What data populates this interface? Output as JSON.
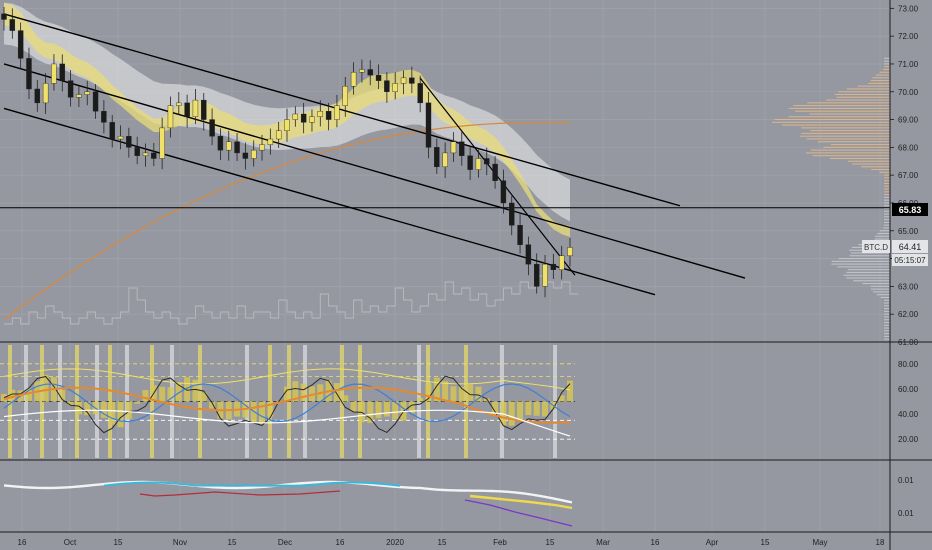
{
  "colors": {
    "background": "#9598a1",
    "grid": "#a2a5ad",
    "bull": "#f0e268",
    "bear": "#1b1b1b",
    "ribbon_yellow": "#e8dc78",
    "ribbon_white": "#eeeeee",
    "ma_orange": "#d8883a",
    "volume_profile": "#e3b98a",
    "volume_line": "#b8bac0",
    "channel": "#000000",
    "label_bg_dark": "#000000",
    "label_bg_light": "#e2e4e8",
    "osc_blue": "#3d7fd6",
    "osc_orange": "#e6882c",
    "osc_white": "#ffffff",
    "osc_black": "#2a2a2a",
    "osc_yellow": "#efe06a",
    "osc_hist": "#d8c850",
    "macd_white": "#f3f3f3",
    "macd_cyan": "#3bb7d8",
    "macd_red": "#b32d3a",
    "macd_yellow": "#f0d84a",
    "macd_purple": "#7a38c8"
  },
  "chart_data": {
    "type": "candlestick",
    "symbol": "BTC.D",
    "last_price": "64.41",
    "countdown": "05:15:07",
    "marked_level": "65.83",
    "ylim": [
      61.0,
      73.3
    ],
    "y_ticks": [
      "73.00",
      "72.00",
      "71.00",
      "70.00",
      "69.00",
      "68.00",
      "67.00",
      "66.00",
      "65.00",
      "64.00",
      "63.00",
      "62.00",
      "61.00"
    ],
    "osc_y_ticks": [
      "80.00",
      "60.00",
      "40.00",
      "20.00"
    ],
    "macd_y_ticks": [
      "0.01",
      "0.01"
    ],
    "x_tick_labels": [
      "16",
      "Oct",
      "15",
      "Nov",
      "15",
      "Dec",
      "16",
      "2020",
      "15",
      "Feb",
      "15",
      "Mar",
      "16",
      "Apr",
      "15",
      "May",
      "18"
    ],
    "close_series": [
      72.6,
      72.2,
      71.2,
      70.1,
      69.6,
      70.3,
      71.0,
      70.4,
      69.8,
      69.9,
      70.0,
      69.3,
      68.9,
      68.3,
      68.4,
      68.0,
      67.7,
      67.8,
      67.6,
      68.7,
      69.5,
      69.6,
      69.1,
      69.7,
      69.0,
      68.4,
      67.9,
      68.2,
      67.8,
      67.6,
      67.9,
      68.1,
      68.3,
      68.6,
      69.0,
      69.2,
      68.9,
      69.1,
      69.3,
      69.0,
      69.5,
      70.2,
      70.7,
      70.8,
      70.6,
      70.4,
      70.0,
      70.3,
      70.5,
      70.3,
      69.6,
      68.0,
      67.3,
      67.8,
      68.2,
      67.7,
      67.2,
      67.6,
      67.4,
      66.8,
      66.0,
      65.2,
      64.5,
      63.8,
      63.0,
      63.8,
      63.6,
      64.1,
      64.4
    ],
    "volume_series": [
      1,
      2,
      1,
      3,
      2,
      4,
      3,
      2,
      1,
      2,
      3,
      2,
      1,
      2,
      3,
      7,
      5,
      3,
      2,
      3,
      2,
      1,
      2,
      4,
      3,
      2,
      3,
      2,
      4,
      2,
      3,
      3,
      2,
      5,
      3,
      2,
      3,
      2,
      6,
      4,
      3,
      2,
      5,
      3,
      4,
      3,
      4,
      7,
      5,
      3,
      4,
      6,
      5,
      8,
      6,
      7,
      5,
      6,
      4,
      5,
      7,
      6,
      8,
      7,
      9,
      8,
      7,
      8,
      6
    ],
    "series": [
      {
        "name": "BTC.D",
        "values": [
          72.6,
          72.2,
          71.2,
          70.1,
          69.6,
          70.3,
          71.0,
          70.4,
          69.8,
          69.9,
          70.0,
          69.3,
          68.9,
          68.3,
          68.4,
          68.0,
          67.7,
          67.8,
          67.6,
          68.7,
          69.5,
          69.6,
          69.1,
          69.7,
          69.0,
          68.4,
          67.9,
          68.2,
          67.8,
          67.6,
          67.9,
          68.1,
          68.3,
          68.6,
          69.0,
          69.2,
          68.9,
          69.1,
          69.3,
          69.0,
          69.5,
          70.2,
          70.7,
          70.8,
          70.6,
          70.4,
          70.0,
          70.3,
          70.5,
          70.3,
          69.6,
          68.0,
          67.3,
          67.8,
          68.2,
          67.7,
          67.2,
          67.6,
          67.4,
          66.8,
          66.0,
          65.2,
          64.5,
          63.8,
          63.0,
          63.8,
          63.6,
          64.1,
          64.4
        ]
      }
    ],
    "grid": true
  }
}
